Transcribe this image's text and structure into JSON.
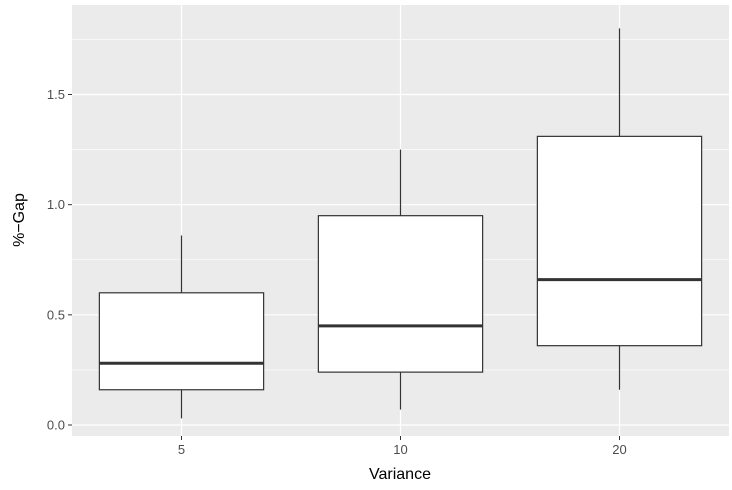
{
  "chart_data": {
    "type": "boxplot",
    "title": "",
    "xlabel": "Variance",
    "ylabel": "%−Gap",
    "categories": [
      "5",
      "10",
      "20"
    ],
    "boxes": [
      {
        "category": "5",
        "whisker_low": 0.03,
        "q1": 0.16,
        "median": 0.28,
        "q3": 0.6,
        "whisker_high": 0.86
      },
      {
        "category": "10",
        "whisker_low": 0.07,
        "q1": 0.24,
        "median": 0.45,
        "q3": 0.95,
        "whisker_high": 1.25
      },
      {
        "category": "20",
        "whisker_low": 0.16,
        "q1": 0.36,
        "median": 0.66,
        "q3": 1.31,
        "whisker_high": 1.8
      }
    ],
    "y_ticks": [
      0.0,
      0.5,
      1.0,
      1.5
    ],
    "y_tick_labels": [
      "0.0",
      "0.5",
      "1.0",
      "1.5"
    ],
    "ylim": [
      -0.03,
      1.86
    ],
    "grid": true,
    "legend": "none",
    "colors": {
      "panel_background": "#ebebeb",
      "grid_major": "#ffffff",
      "box_fill": "#ffffff",
      "box_stroke": "#333333",
      "tick_label": "#4d4d4d",
      "axis_title": "#000000"
    }
  }
}
